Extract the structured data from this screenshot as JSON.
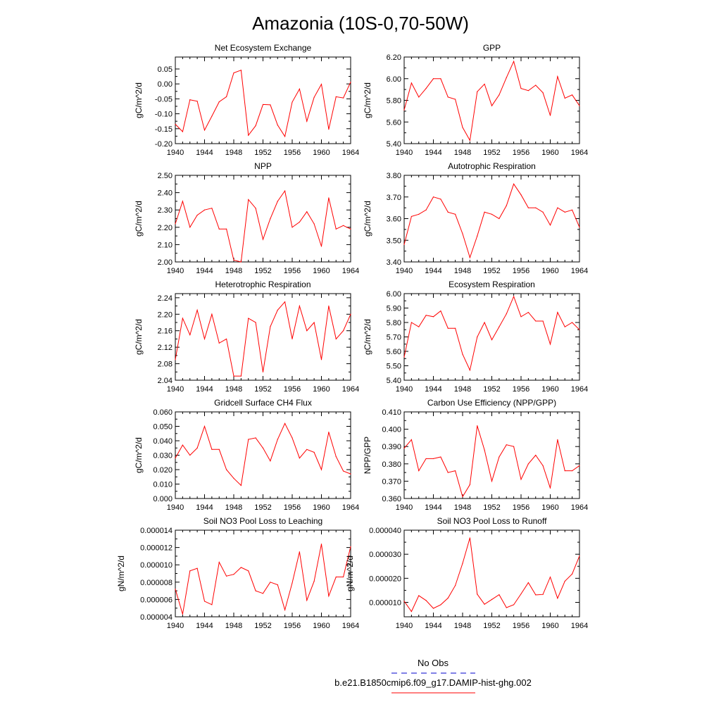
{
  "title": "Amazonia (10S-0,70-50W)",
  "legend": {
    "obs_label": "No Obs",
    "model_label": "b.e21.B1850cmip6.f09_g17.DAMIP-hist-ghg.002",
    "obs_color": "#0000cc",
    "model_color": "#ff0000"
  },
  "chart_data": [
    {
      "type": "line",
      "title": "Net Ecosystem Exchange",
      "ylabel": "gC/m^2/d",
      "xlim": [
        1940,
        1964
      ],
      "ylim": [
        -0.2,
        0.09
      ],
      "xticks": [
        "1940",
        "1944",
        "1948",
        "1952",
        "1956",
        "1960",
        "1964"
      ],
      "yticks": [
        "-0.20",
        "-0.15",
        "-0.10",
        "-0.05",
        "0.00",
        "0.05"
      ],
      "ytick_values": [
        -0.2,
        -0.15,
        -0.1,
        -0.05,
        0.0,
        0.05
      ],
      "series": [
        {
          "x": [
            1940,
            1941,
            1942,
            1943,
            1944,
            1945,
            1946,
            1947,
            1948,
            1949,
            1950,
            1951,
            1952,
            1953,
            1954,
            1955,
            1956,
            1957,
            1958,
            1959,
            1960,
            1961,
            1962,
            1963,
            1964
          ],
          "values": [
            -0.135,
            -0.16,
            -0.053,
            -0.058,
            -0.155,
            -0.108,
            -0.06,
            -0.043,
            0.037,
            0.046,
            -0.172,
            -0.14,
            -0.069,
            -0.07,
            -0.138,
            -0.176,
            -0.061,
            -0.017,
            -0.125,
            -0.045,
            -0.001,
            -0.152,
            -0.043,
            -0.047,
            0.006
          ]
        }
      ]
    },
    {
      "type": "line",
      "title": "GPP",
      "ylabel": "gC/m^2/d",
      "xlim": [
        1940,
        1964
      ],
      "ylim": [
        5.4,
        6.2
      ],
      "xticks": [
        "1940",
        "1944",
        "1948",
        "1952",
        "1956",
        "1960",
        "1964"
      ],
      "yticks": [
        "5.40",
        "5.60",
        "5.80",
        "6.00",
        "6.20"
      ],
      "ytick_values": [
        5.4,
        5.6,
        5.8,
        6.0,
        6.2
      ],
      "series": [
        {
          "x": [
            1940,
            1941,
            1942,
            1943,
            1944,
            1945,
            1946,
            1947,
            1948,
            1949,
            1950,
            1951,
            1952,
            1953,
            1954,
            1955,
            1956,
            1957,
            1958,
            1959,
            1960,
            1961,
            1962,
            1963,
            1964
          ],
          "values": [
            5.71,
            5.96,
            5.83,
            5.91,
            6.0,
            6.0,
            5.83,
            5.81,
            5.55,
            5.43,
            5.88,
            5.95,
            5.75,
            5.85,
            6.01,
            6.16,
            5.91,
            5.89,
            5.94,
            5.87,
            5.66,
            6.02,
            5.82,
            5.85,
            5.75
          ]
        }
      ]
    },
    {
      "type": "line",
      "title": "NPP",
      "ylabel": "gC/m^2/d",
      "xlim": [
        1940,
        1964
      ],
      "ylim": [
        2.0,
        2.5
      ],
      "xticks": [
        "1940",
        "1944",
        "1948",
        "1952",
        "1956",
        "1960",
        "1964"
      ],
      "yticks": [
        "2.00",
        "2.10",
        "2.20",
        "2.30",
        "2.40",
        "2.50"
      ],
      "ytick_values": [
        2.0,
        2.1,
        2.2,
        2.3,
        2.4,
        2.5
      ],
      "series": [
        {
          "x": [
            1940,
            1941,
            1942,
            1943,
            1944,
            1945,
            1946,
            1947,
            1948,
            1949,
            1950,
            1951,
            1952,
            1953,
            1954,
            1955,
            1956,
            1957,
            1958,
            1959,
            1960,
            1961,
            1962,
            1963,
            1964
          ],
          "values": [
            2.22,
            2.35,
            2.2,
            2.27,
            2.3,
            2.31,
            2.19,
            2.19,
            2.01,
            2.0,
            2.36,
            2.31,
            2.13,
            2.25,
            2.35,
            2.41,
            2.2,
            2.23,
            2.29,
            2.22,
            2.09,
            2.37,
            2.19,
            2.21,
            2.19
          ]
        }
      ]
    },
    {
      "type": "line",
      "title": "Autotrophic Respiration",
      "ylabel": "gC/m^2/d",
      "xlim": [
        1940,
        1964
      ],
      "ylim": [
        3.4,
        3.8
      ],
      "xticks": [
        "1940",
        "1944",
        "1948",
        "1952",
        "1956",
        "1960",
        "1964"
      ],
      "yticks": [
        "3.40",
        "3.50",
        "3.60",
        "3.70",
        "3.80"
      ],
      "ytick_values": [
        3.4,
        3.5,
        3.6,
        3.7,
        3.8
      ],
      "series": [
        {
          "x": [
            1940,
            1941,
            1942,
            1943,
            1944,
            1945,
            1946,
            1947,
            1948,
            1949,
            1950,
            1951,
            1952,
            1953,
            1954,
            1955,
            1956,
            1957,
            1958,
            1959,
            1960,
            1961,
            1962,
            1963,
            1964
          ],
          "values": [
            3.48,
            3.61,
            3.62,
            3.64,
            3.7,
            3.69,
            3.63,
            3.62,
            3.53,
            3.42,
            3.52,
            3.63,
            3.62,
            3.6,
            3.66,
            3.76,
            3.71,
            3.65,
            3.65,
            3.63,
            3.57,
            3.65,
            3.63,
            3.64,
            3.56
          ]
        }
      ]
    },
    {
      "type": "line",
      "title": "Heterotrophic Respiration",
      "ylabel": "gC/m^2/d",
      "xlim": [
        1940,
        1964
      ],
      "ylim": [
        2.04,
        2.25
      ],
      "xticks": [
        "1940",
        "1944",
        "1948",
        "1952",
        "1956",
        "1960",
        "1964"
      ],
      "yticks": [
        "2.04",
        "2.08",
        "2.12",
        "2.16",
        "2.20",
        "2.24"
      ],
      "ytick_values": [
        2.04,
        2.08,
        2.12,
        2.16,
        2.2,
        2.24
      ],
      "series": [
        {
          "x": [
            1940,
            1941,
            1942,
            1943,
            1944,
            1945,
            1946,
            1947,
            1948,
            1949,
            1950,
            1951,
            1952,
            1953,
            1954,
            1955,
            1956,
            1957,
            1958,
            1959,
            1960,
            1961,
            1962,
            1963,
            1964
          ],
          "values": [
            2.09,
            2.19,
            2.15,
            2.21,
            2.14,
            2.2,
            2.13,
            2.14,
            2.05,
            2.05,
            2.19,
            2.18,
            2.06,
            2.17,
            2.21,
            2.23,
            2.14,
            2.22,
            2.16,
            2.18,
            2.09,
            2.22,
            2.14,
            2.16,
            2.2
          ]
        }
      ]
    },
    {
      "type": "line",
      "title": "Ecosystem Respiration",
      "ylabel": "gC/m^2/d",
      "xlim": [
        1940,
        1964
      ],
      "ylim": [
        5.4,
        6.0
      ],
      "xticks": [
        "1940",
        "1944",
        "1948",
        "1952",
        "1956",
        "1960",
        "1964"
      ],
      "yticks": [
        "5.40",
        "5.50",
        "5.60",
        "5.70",
        "5.80",
        "5.90",
        "6.00"
      ],
      "ytick_values": [
        5.4,
        5.5,
        5.6,
        5.7,
        5.8,
        5.9,
        6.0
      ],
      "series": [
        {
          "x": [
            1940,
            1941,
            1942,
            1943,
            1944,
            1945,
            1946,
            1947,
            1948,
            1949,
            1950,
            1951,
            1952,
            1953,
            1954,
            1955,
            1956,
            1957,
            1958,
            1959,
            1960,
            1961,
            1962,
            1963,
            1964
          ],
          "values": [
            5.56,
            5.8,
            5.77,
            5.85,
            5.84,
            5.88,
            5.76,
            5.76,
            5.58,
            5.47,
            5.7,
            5.8,
            5.68,
            5.77,
            5.86,
            5.98,
            5.84,
            5.87,
            5.81,
            5.81,
            5.65,
            5.87,
            5.77,
            5.8,
            5.75
          ]
        }
      ]
    },
    {
      "type": "line",
      "title": "Gridcell Surface CH4 Flux",
      "ylabel": "gC/m^2/d",
      "xlim": [
        1940,
        1964
      ],
      "ylim": [
        0.0,
        0.06
      ],
      "xticks": [
        "1940",
        "1944",
        "1948",
        "1952",
        "1956",
        "1960",
        "1964"
      ],
      "yticks": [
        "0.000",
        "0.010",
        "0.020",
        "0.030",
        "0.040",
        "0.050",
        "0.060"
      ],
      "ytick_values": [
        0.0,
        0.01,
        0.02,
        0.03,
        0.04,
        0.05,
        0.06
      ],
      "series": [
        {
          "x": [
            1940,
            1941,
            1942,
            1943,
            1944,
            1945,
            1946,
            1947,
            1948,
            1949,
            1950,
            1951,
            1952,
            1953,
            1954,
            1955,
            1956,
            1957,
            1958,
            1959,
            1960,
            1961,
            1962,
            1963,
            1964
          ],
          "values": [
            0.028,
            0.037,
            0.03,
            0.035,
            0.05,
            0.034,
            0.034,
            0.02,
            0.014,
            0.009,
            0.041,
            0.042,
            0.035,
            0.026,
            0.041,
            0.052,
            0.042,
            0.028,
            0.034,
            0.032,
            0.02,
            0.046,
            0.029,
            0.019,
            0.017
          ]
        }
      ]
    },
    {
      "type": "line",
      "title": "Carbon Use Efficiency (NPP/GPP)",
      "ylabel": "NPP/GPP",
      "xlim": [
        1940,
        1964
      ],
      "ylim": [
        0.36,
        0.41
      ],
      "xticks": [
        "1940",
        "1944",
        "1948",
        "1952",
        "1956",
        "1960",
        "1964"
      ],
      "yticks": [
        "0.360",
        "0.370",
        "0.380",
        "0.390",
        "0.400",
        "0.410"
      ],
      "ytick_values": [
        0.36,
        0.37,
        0.38,
        0.39,
        0.4,
        0.41
      ],
      "series": [
        {
          "x": [
            1940,
            1941,
            1942,
            1943,
            1944,
            1945,
            1946,
            1947,
            1948,
            1949,
            1950,
            1951,
            1952,
            1953,
            1954,
            1955,
            1956,
            1957,
            1958,
            1959,
            1960,
            1961,
            1962,
            1963,
            1964
          ],
          "values": [
            0.389,
            0.394,
            0.376,
            0.383,
            0.383,
            0.384,
            0.375,
            0.376,
            0.361,
            0.368,
            0.402,
            0.388,
            0.37,
            0.384,
            0.391,
            0.39,
            0.371,
            0.38,
            0.385,
            0.379,
            0.366,
            0.394,
            0.376,
            0.376,
            0.379
          ]
        }
      ]
    },
    {
      "type": "line",
      "title": "Soil NO3 Pool Loss to Leaching",
      "ylabel": "gN/m^2/d",
      "xlim": [
        1940,
        1964
      ],
      "ylim": [
        4e-06,
        1.4e-05
      ],
      "xticks": [
        "1940",
        "1944",
        "1948",
        "1952",
        "1956",
        "1960",
        "1964"
      ],
      "yticks": [
        "0.000004",
        "0.000006",
        "0.000008",
        "0.000010",
        "0.000012",
        "0.000014"
      ],
      "ytick_values": [
        4e-06,
        6e-06,
        8e-06,
        1e-05,
        1.2e-05,
        1.4e-05
      ],
      "series": [
        {
          "x": [
            1940,
            1941,
            1942,
            1943,
            1944,
            1945,
            1946,
            1947,
            1948,
            1949,
            1950,
            1951,
            1952,
            1953,
            1954,
            1955,
            1956,
            1957,
            1958,
            1959,
            1960,
            1961,
            1962,
            1963,
            1964
          ],
          "values": [
            7.2e-06,
            4.3e-06,
            9.3e-06,
            9.6e-06,
            5.8e-06,
            5.4e-06,
            1.03e-05,
            8.7e-06,
            8.9e-06,
            9.7e-06,
            9.3e-06,
            7e-06,
            6.7e-06,
            8e-06,
            7.7e-06,
            4.8e-06,
            7.9e-06,
            1.15e-05,
            5.9e-06,
            8.1e-06,
            1.24e-05,
            6.4e-06,
            8.6e-06,
            8.6e-06,
            1.21e-05
          ]
        }
      ]
    },
    {
      "type": "line",
      "title": "Soil NO3 Pool Loss to Runoff",
      "ylabel": "gN/m^2/d",
      "xlim": [
        1940,
        1964
      ],
      "ylim": [
        4e-06,
        4e-05
      ],
      "xticks": [
        "1940",
        "1944",
        "1948",
        "1952",
        "1956",
        "1960",
        "1964"
      ],
      "yticks": [
        "0.000010",
        "0.000020",
        "0.000030",
        "0.000040"
      ],
      "ytick_values": [
        1e-05,
        2e-05,
        3e-05,
        4e-05
      ],
      "series": [
        {
          "x": [
            1940,
            1941,
            1942,
            1943,
            1944,
            1945,
            1946,
            1947,
            1948,
            1949,
            1950,
            1951,
            1952,
            1953,
            1954,
            1955,
            1956,
            1957,
            1958,
            1959,
            1960,
            1961,
            1962,
            1963,
            1964
          ],
          "values": [
            1.05e-05,
            6.2e-06,
            1.28e-05,
            1.08e-05,
            7.5e-06,
            9e-06,
            1.18e-05,
            1.7e-05,
            2.62e-05,
            3.68e-05,
            1.34e-05,
            9.2e-06,
            1.12e-05,
            1.32e-05,
            7.8e-06,
            9e-06,
            1.35e-05,
            1.82e-05,
            1.31e-05,
            1.33e-05,
            2.05e-05,
            1.17e-05,
            1.88e-05,
            2.18e-05,
            2.93e-05
          ]
        }
      ]
    }
  ]
}
